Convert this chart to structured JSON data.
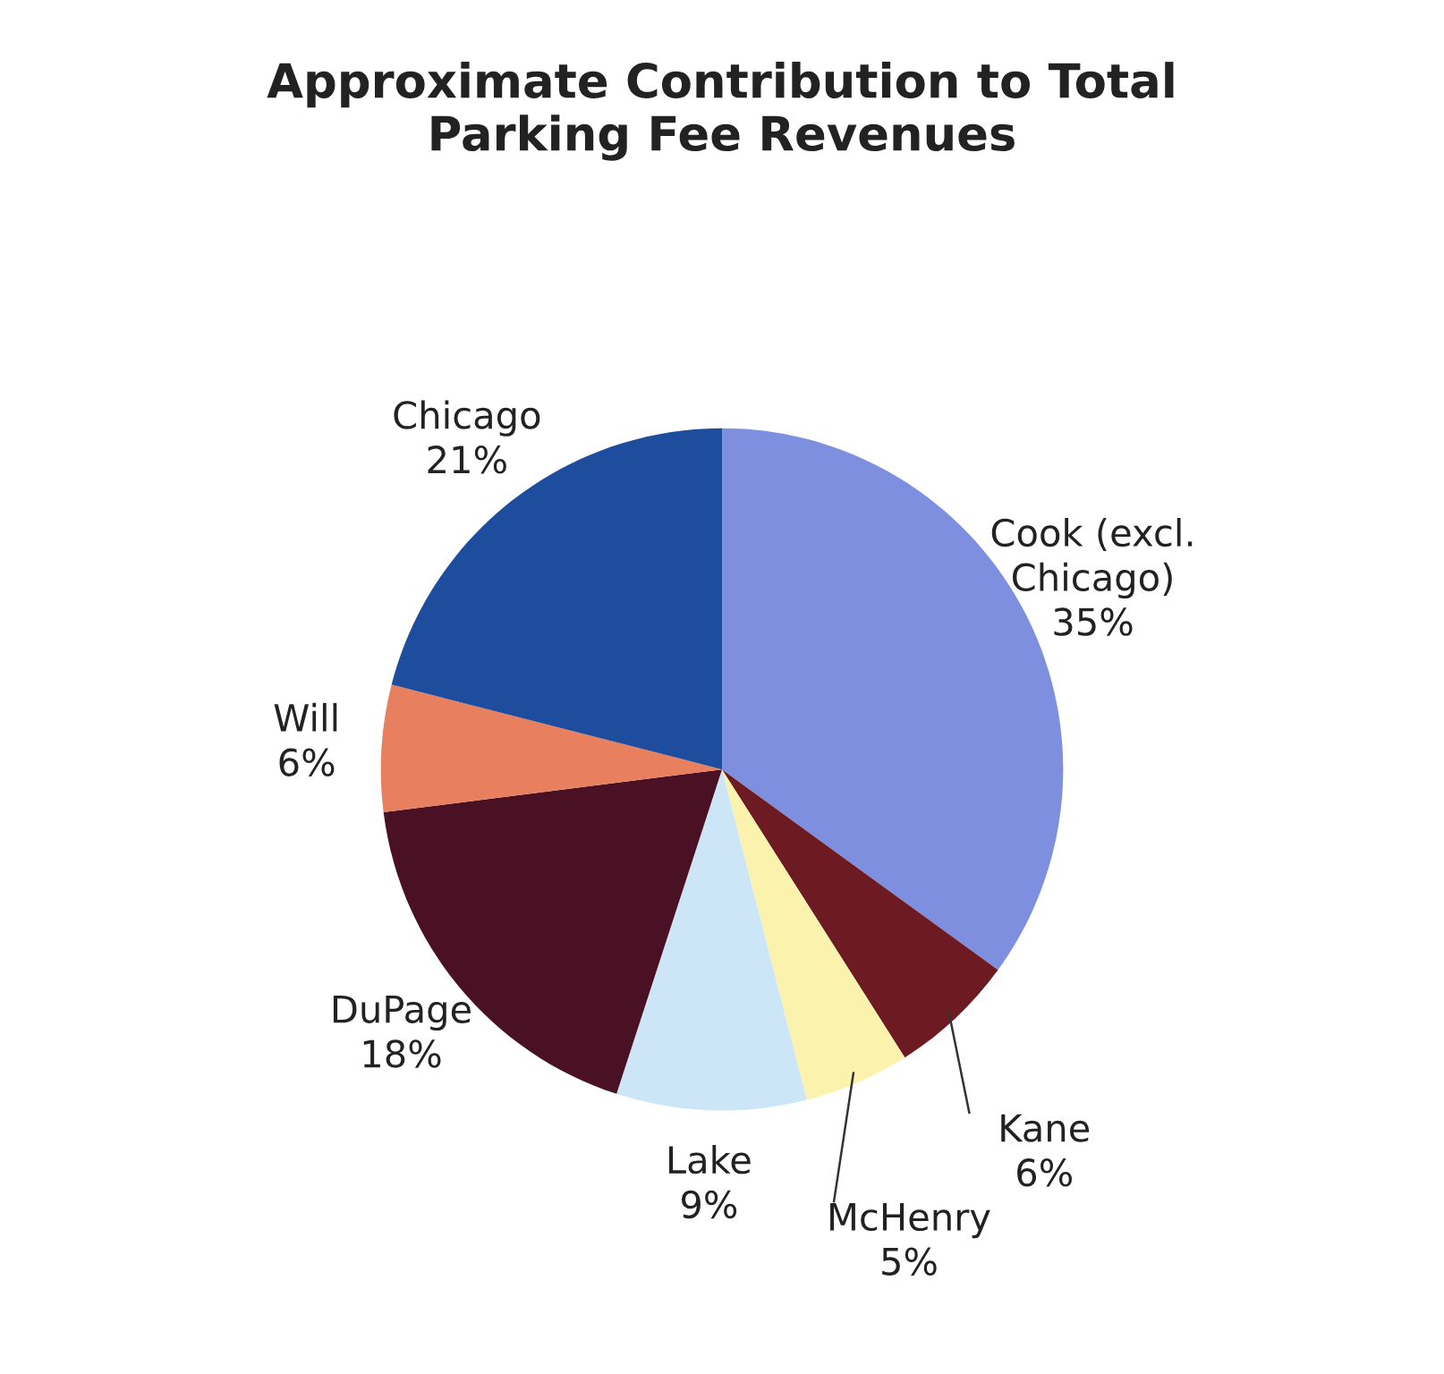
{
  "chart_data": {
    "type": "pie",
    "title": "Approximate Contribution to Total\nParking Fee Revenues",
    "categories": [
      "Cook (excl.\nChicago)",
      "Kane",
      "McHenry",
      "Lake",
      "DuPage",
      "Will",
      "Chicago"
    ],
    "values": [
      35,
      6,
      5,
      9,
      18,
      6,
      21
    ],
    "colors": [
      "#7f8fe0",
      "#6e1a22",
      "#fbf3ad",
      "#cde6f7",
      "#4a1024",
      "#e8805f",
      "#1f4d9e"
    ],
    "value_labels": [
      "35%",
      "6%",
      "5%",
      "9%",
      "18%",
      "6%",
      "21%"
    ]
  }
}
